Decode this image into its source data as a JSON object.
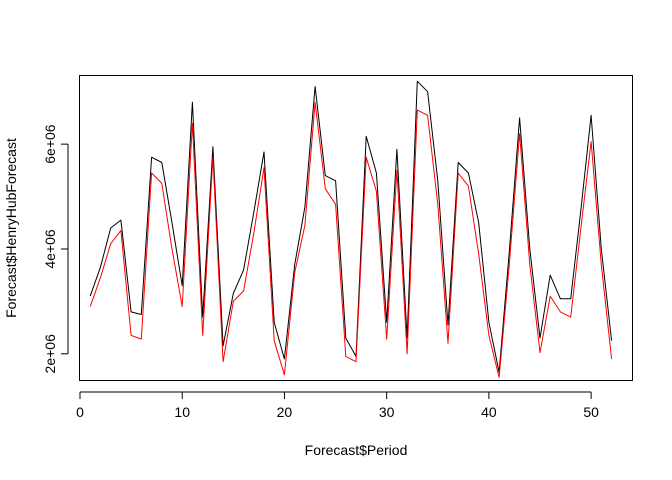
{
  "chart_data": {
    "type": "line",
    "title": "",
    "xlabel": "Forecast$Period",
    "ylabel": "Forecast$HenryHubForecast",
    "xlim": [
      0,
      54
    ],
    "ylim": [
      1500000,
      7300000
    ],
    "xticks": [
      0,
      10,
      20,
      30,
      40,
      50
    ],
    "xtick_labels": [
      "0",
      "10",
      "20",
      "30",
      "40",
      "50"
    ],
    "yticks": [
      2000000,
      4000000,
      6000000
    ],
    "ytick_labels": [
      "2e+06",
      "4e+06",
      "6e+06"
    ],
    "grid": false,
    "x": [
      1,
      2,
      3,
      4,
      5,
      6,
      7,
      8,
      9,
      10,
      11,
      12,
      13,
      14,
      15,
      16,
      17,
      18,
      19,
      20,
      21,
      22,
      23,
      24,
      25,
      26,
      27,
      28,
      29,
      30,
      31,
      32,
      33,
      34,
      35,
      36,
      37,
      38,
      39,
      40,
      41,
      42,
      43,
      44,
      45,
      46,
      47,
      48,
      49,
      50,
      51,
      52
    ],
    "series": [
      {
        "color": "#000000",
        "values": [
          3100000,
          3650000,
          4400000,
          4550000,
          2800000,
          2750000,
          5750000,
          5650000,
          4500000,
          3300000,
          6800000,
          2700000,
          5950000,
          2150000,
          3150000,
          3600000,
          4700000,
          5850000,
          2600000,
          1900000,
          3700000,
          4800000,
          7100000,
          5400000,
          5300000,
          2300000,
          1950000,
          6150000,
          5450000,
          2600000,
          5900000,
          2300000,
          7200000,
          7000000,
          5300000,
          2550000,
          5650000,
          5450000,
          4500000,
          2600000,
          1650000,
          3950000,
          6500000,
          4000000,
          2300000,
          3500000,
          3050000,
          3050000,
          4750000,
          6550000,
          4000000,
          2250000
        ]
      },
      {
        "color": "#ff0000",
        "values": [
          2900000,
          3450000,
          4100000,
          4350000,
          2350000,
          2280000,
          5450000,
          5250000,
          4000000,
          2900000,
          6400000,
          2350000,
          5750000,
          1850000,
          3000000,
          3200000,
          4300000,
          5550000,
          2250000,
          1600000,
          3550000,
          4450000,
          6800000,
          5150000,
          4850000,
          1950000,
          1850000,
          5750000,
          5100000,
          2280000,
          5500000,
          2000000,
          6650000,
          6550000,
          4850000,
          2200000,
          5450000,
          5200000,
          3900000,
          2350000,
          1550000,
          3700000,
          6200000,
          3700000,
          2020000,
          3100000,
          2800000,
          2700000,
          4400000,
          6050000,
          3700000,
          1900000
        ]
      }
    ]
  }
}
